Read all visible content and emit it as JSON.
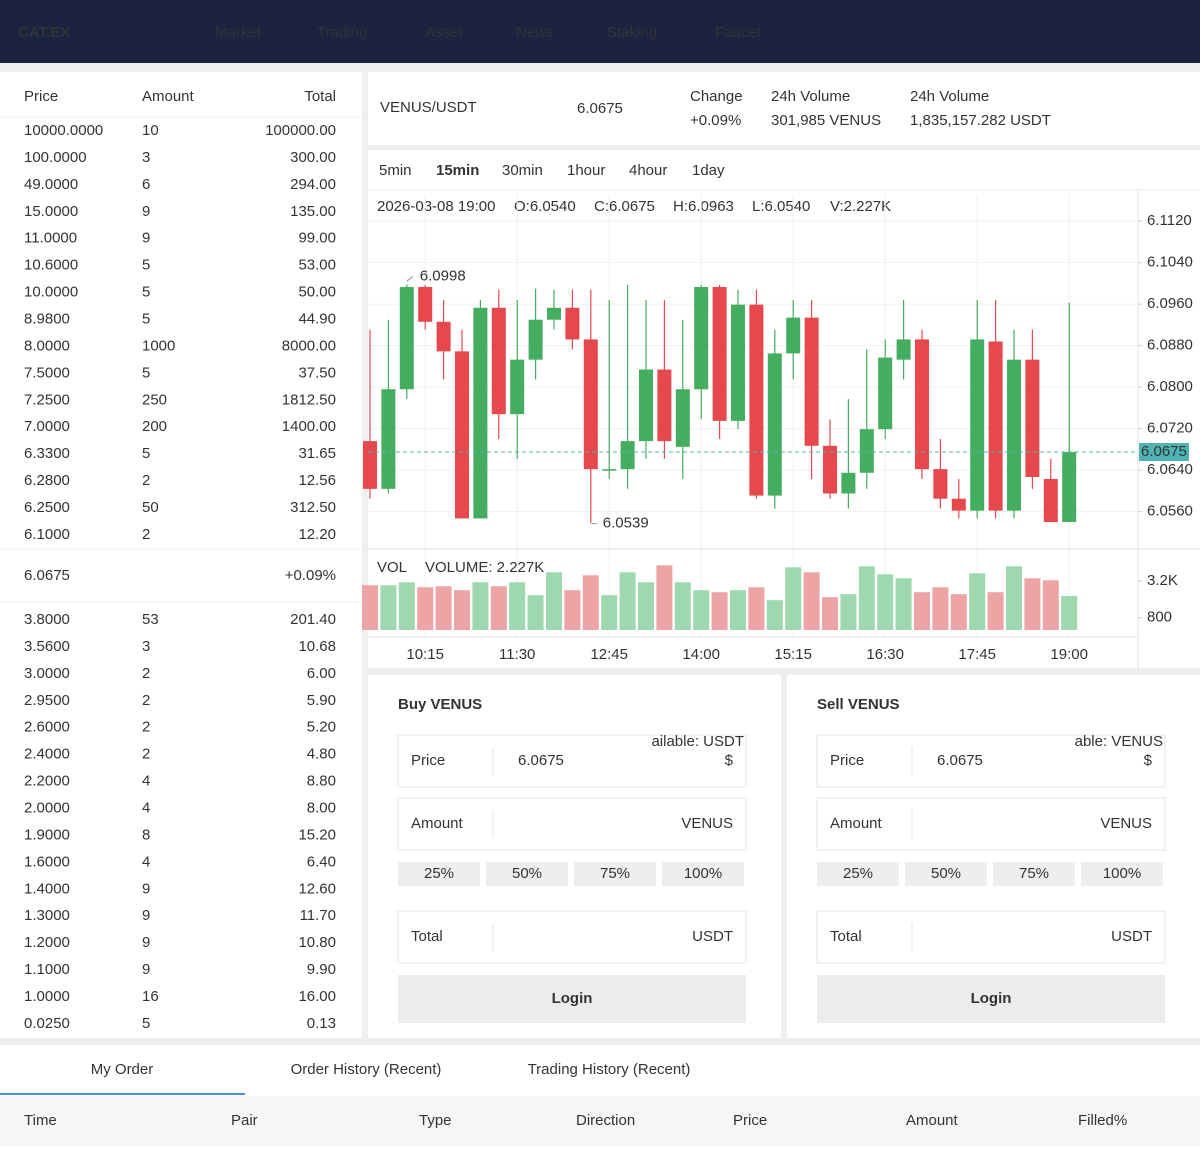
{
  "header": {
    "logo": "CAT.EX",
    "nav": [
      "Market",
      "Trading",
      "Asset",
      "News",
      "Staking",
      "Faucet"
    ],
    "active_nav": 1
  },
  "order_book": {
    "columns": [
      "Price",
      "Amount",
      "Total"
    ],
    "asks": [
      [
        "10000.0000",
        "10",
        "100000.00"
      ],
      [
        "100.0000",
        "3",
        "300.00"
      ],
      [
        "49.0000",
        "6",
        "294.00"
      ],
      [
        "15.0000",
        "9",
        "135.00"
      ],
      [
        "11.0000",
        "9",
        "99.00"
      ],
      [
        "10.6000",
        "5",
        "53.00"
      ],
      [
        "10.0000",
        "5",
        "50.00"
      ],
      [
        "8.9800",
        "5",
        "44.90"
      ],
      [
        "8.0000",
        "1000",
        "8000.00"
      ],
      [
        "7.5000",
        "5",
        "37.50"
      ],
      [
        "7.2500",
        "250",
        "1812.50"
      ],
      [
        "7.0000",
        "200",
        "1400.00"
      ],
      [
        "6.3300",
        "5",
        "31.65"
      ],
      [
        "6.2800",
        "2",
        "12.56"
      ],
      [
        "6.2500",
        "50",
        "312.50"
      ],
      [
        "6.1000",
        "2",
        "12.20"
      ]
    ],
    "last_price": "6.0675",
    "last_change": "+0.09%",
    "bids": [
      [
        "3.8000",
        "53",
        "201.40"
      ],
      [
        "3.5600",
        "3",
        "10.68"
      ],
      [
        "3.0000",
        "2",
        "6.00"
      ],
      [
        "2.9500",
        "2",
        "5.90"
      ],
      [
        "2.6000",
        "2",
        "5.20"
      ],
      [
        "2.4000",
        "2",
        "4.80"
      ],
      [
        "2.2000",
        "4",
        "8.80"
      ],
      [
        "2.0000",
        "4",
        "8.00"
      ],
      [
        "1.9000",
        "8",
        "15.20"
      ],
      [
        "1.6000",
        "4",
        "6.40"
      ],
      [
        "1.4000",
        "9",
        "12.60"
      ],
      [
        "1.3000",
        "9",
        "11.70"
      ],
      [
        "1.2000",
        "9",
        "10.80"
      ],
      [
        "1.1000",
        "9",
        "9.90"
      ],
      [
        "1.0000",
        "16",
        "16.00"
      ],
      [
        "0.0250",
        "5",
        "0.13"
      ]
    ]
  },
  "ticker": {
    "pair": "VENUS/USDT",
    "price": "6.0675",
    "change_label": "Change",
    "change": "+0.09%",
    "volume_label": "24h Volume",
    "volume_base": "301,985 VENUS",
    "volume_quote_label": "24h Volume",
    "volume_quote": "1,835,157.282 USDT"
  },
  "intervals": {
    "options": [
      "5min",
      "15min",
      "30min",
      "1hour",
      "4hour",
      "1day"
    ],
    "active": 1
  },
  "chart_data": {
    "type": "candlestick",
    "info": [
      "2026-03-08 19:00",
      "O:6.0540",
      "C:6.0675",
      "H:6.0963",
      "L:6.0540",
      "V:2.227K"
    ],
    "x": [
      null,
      null,
      null,
      "10:15",
      null,
      null,
      null,
      null,
      "11:30",
      null,
      null,
      null,
      null,
      "12:45",
      null,
      null,
      null,
      null,
      "14:00",
      null,
      null,
      null,
      null,
      "15:15",
      null,
      null,
      null,
      null,
      "16:30",
      null,
      null,
      null,
      null,
      "17:45",
      null,
      null,
      null,
      null,
      "19:00"
    ],
    "open": [
      6.0696,
      6.0604,
      6.0796,
      6.0993,
      6.0926,
      6.0869,
      6.0547,
      6.0953,
      6.0748,
      6.0853,
      6.093,
      6.0953,
      6.0892,
      6.0639,
      6.0642,
      6.0696,
      6.0834,
      6.0685,
      6.0796,
      6.0993,
      6.0735,
      6.0959,
      6.0591,
      6.0865,
      6.0934,
      6.0687,
      6.0595,
      6.0635,
      6.0719,
      6.0853,
      6.0892,
      6.0642,
      6.0585,
      6.0562,
      6.0888,
      6.0562,
      6.0853,
      6.0623,
      6.054
    ],
    "high": [
      6.0911,
      6.093,
      6.0998,
      6.0997,
      6.0968,
      6.0911,
      6.0968,
      6.0988,
      6.0968,
      6.099,
      6.0988,
      6.0988,
      6.0988,
      6.0968,
      6.0997,
      6.0968,
      6.0968,
      6.093,
      6.0997,
      6.0997,
      6.0988,
      6.0988,
      6.0911,
      6.0968,
      6.0968,
      6.0738,
      6.0777,
      6.0873,
      6.0892,
      6.0968,
      6.0911,
      6.07,
      6.0623,
      6.0968,
      6.0968,
      6.0911,
      6.0911,
      6.0662,
      6.0963
    ],
    "low": [
      6.0585,
      6.0595,
      6.0777,
      6.0911,
      6.0815,
      6.0547,
      6.0547,
      6.07,
      6.0662,
      6.0815,
      6.0911,
      6.0873,
      6.0539,
      6.0623,
      6.0604,
      6.0662,
      6.0662,
      6.0623,
      6.0738,
      6.07,
      6.0719,
      6.0585,
      6.0566,
      6.0815,
      6.0623,
      6.0585,
      6.0566,
      6.0604,
      6.07,
      6.0815,
      6.0623,
      6.0566,
      6.0547,
      6.0547,
      6.0547,
      6.0547,
      6.0604,
      6.054,
      6.054
    ],
    "close": [
      6.0604,
      6.0796,
      6.0993,
      6.0926,
      6.0869,
      6.0547,
      6.0953,
      6.0748,
      6.0853,
      6.093,
      6.0953,
      6.0892,
      6.0642,
      6.0642,
      6.0696,
      6.0834,
      6.0696,
      6.0796,
      6.0993,
      6.0735,
      6.0959,
      6.0591,
      6.0865,
      6.0934,
      6.0687,
      6.0595,
      6.0635,
      6.0719,
      6.0857,
      6.0892,
      6.0642,
      6.0585,
      6.0562,
      6.0892,
      6.0562,
      6.0853,
      6.0627,
      6.054,
      6.0675
    ],
    "volume": [
      2925,
      2925,
      3120,
      2795,
      2860,
      2600,
      3120,
      2860,
      3120,
      2275,
      3770,
      2600,
      3575,
      2275,
      3770,
      3120,
      4225,
      3120,
      2600,
      2470,
      2600,
      2795,
      1950,
      4095,
      3770,
      2145,
      2340,
      4160,
      3640,
      3380,
      2470,
      2795,
      2340,
      3705,
      2470,
      4160,
      3380,
      3250,
      2227
    ],
    "up_color": "#45ad5f",
    "down_color": "#e5494d",
    "up_volume_color": "#9dd8ae",
    "down_volume_color": "#eca4a4",
    "ylim": [
      6.049,
      6.118
    ],
    "yticks": [
      {
        "value": 6.056,
        "label": "6.0560"
      },
      {
        "value": 6.064,
        "label": "6.0640"
      },
      {
        "value": 6.072,
        "label": "6.0720"
      },
      {
        "value": 6.08,
        "label": "6.0800"
      },
      {
        "value": 6.088,
        "label": "6.0880"
      },
      {
        "value": 6.096,
        "label": "6.0960"
      },
      {
        "value": 6.104,
        "label": "6.1040"
      },
      {
        "value": 6.112,
        "label": "6.1120"
      }
    ],
    "volume_ylim": [
      0,
      4900
    ],
    "volume_yticks": [
      800,
      {
        "value": 3200,
        "label": "3.2K"
      }
    ],
    "volume_title": "VOL",
    "volume_legend": "VOLUME: 2.227K",
    "max_marker": 6.0998,
    "min_marker": 6.0539,
    "last_price": 6.0675,
    "grid": true
  },
  "buy": {
    "title": "Buy VENUS",
    "price_label": "Price",
    "price": "6.0675",
    "available": "ailable: USDT",
    "price_unit": "$",
    "amount_label": "Amount",
    "amount_unit": "VENUS",
    "percents": [
      "25%",
      "50%",
      "75%",
      "100%"
    ],
    "total_label": "Total",
    "total_unit": "USDT",
    "button": "Login"
  },
  "sell": {
    "title": "Sell VENUS",
    "price_label": "Price",
    "price": "6.0675",
    "available": "able: VENUS",
    "price_unit": "$",
    "amount_label": "Amount",
    "amount_unit": "VENUS",
    "percents": [
      "25%",
      "50%",
      "75%",
      "100%"
    ],
    "total_label": "Total",
    "total_unit": "USDT",
    "button": "Login"
  },
  "orders": {
    "tabs": [
      "My Order",
      "Order History (Recent)",
      "Trading History (Recent)"
    ],
    "active_tab": 0,
    "columns": [
      "Time",
      "Pair",
      "Type",
      "Direction",
      "Price",
      "Amount",
      "Filled%"
    ]
  }
}
